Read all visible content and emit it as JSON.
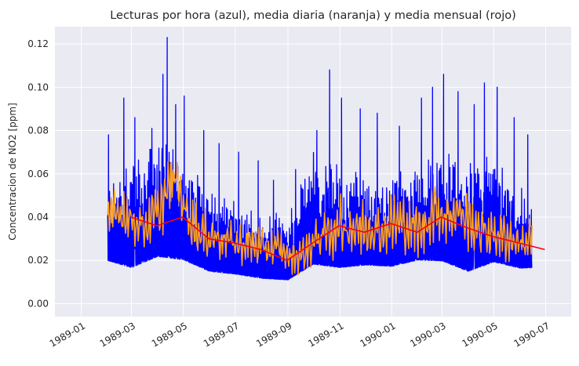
{
  "chart_data": {
    "type": "line",
    "title": "Lecturas por hora (azul), media diaria (naranja) y media mensual (rojo)",
    "xlabel": "",
    "ylabel": "Concentracion de NO2 [ppm]",
    "x_axis_type": "date",
    "xlim": [
      "1988-12-01",
      "1990-07-31"
    ],
    "ylim": [
      -0.006,
      0.128
    ],
    "x_ticks": [
      "1989-01",
      "1989-03",
      "1989-05",
      "1989-07",
      "1989-09",
      "1989-11",
      "1990-01",
      "1990-03",
      "1990-05",
      "1990-07"
    ],
    "y_ticks": [
      0.0,
      0.02,
      0.04,
      0.06,
      0.08,
      0.1,
      0.12
    ],
    "y_tick_labels": [
      "0.00",
      "0.02",
      "0.04",
      "0.06",
      "0.08",
      "0.10",
      "0.12"
    ],
    "grid": true,
    "colors": {
      "background": "#eaeaf2",
      "grid": "#ffffff",
      "hourly": "#0000ff",
      "daily": "#ff9f1c",
      "monthly": "#ff0000"
    },
    "series": [
      {
        "id": "hourly",
        "color": "#0000ff",
        "date_range": [
          "1989-02-01",
          "1990-06-15"
        ],
        "envelope": {
          "x": [
            "1989-02-01",
            "1989-03-01",
            "1989-04-01",
            "1989-05-01",
            "1989-06-01",
            "1989-07-01",
            "1989-08-01",
            "1989-09-01",
            "1989-10-01",
            "1989-11-01",
            "1989-12-01",
            "1990-01-01",
            "1990-02-01",
            "1990-03-01",
            "1990-04-01",
            "1990-05-01",
            "1990-06-01",
            "1990-06-15"
          ],
          "low": [
            0.012,
            0.006,
            0.008,
            0.01,
            0.006,
            0.006,
            0.005,
            0.004,
            0.006,
            0.006,
            0.008,
            0.008,
            0.01,
            0.008,
            0.004,
            0.008,
            0.008,
            0.01
          ],
          "high": [
            0.078,
            0.095,
            0.123,
            0.096,
            0.08,
            0.07,
            0.061,
            0.062,
            0.108,
            0.095,
            0.09,
            0.085,
            0.095,
            0.106,
            0.095,
            0.102,
            0.078,
            0.065
          ]
        },
        "peaks": [
          [
            "1989-02-02",
            0.078
          ],
          [
            "1989-02-20",
            0.095
          ],
          [
            "1989-03-05",
            0.086
          ],
          [
            "1989-03-25",
            0.081
          ],
          [
            "1989-04-07",
            0.106
          ],
          [
            "1989-04-12",
            0.123
          ],
          [
            "1989-04-22",
            0.092
          ],
          [
            "1989-05-02",
            0.096
          ],
          [
            "1989-05-25",
            0.08
          ],
          [
            "1989-06-12",
            0.074
          ],
          [
            "1989-07-05",
            0.07
          ],
          [
            "1989-07-28",
            0.066
          ],
          [
            "1989-08-15",
            0.057
          ],
          [
            "1989-09-10",
            0.062
          ],
          [
            "1989-10-05",
            0.08
          ],
          [
            "1989-10-20",
            0.108
          ],
          [
            "1989-11-03",
            0.095
          ],
          [
            "1989-11-25",
            0.09
          ],
          [
            "1989-12-15",
            0.088
          ],
          [
            "1990-01-10",
            0.082
          ],
          [
            "1990-02-05",
            0.095
          ],
          [
            "1990-02-18",
            0.1
          ],
          [
            "1990-03-03",
            0.106
          ],
          [
            "1990-03-20",
            0.098
          ],
          [
            "1990-04-08",
            0.092
          ],
          [
            "1990-04-20",
            0.102
          ],
          [
            "1990-05-05",
            0.1
          ],
          [
            "1990-05-25",
            0.086
          ],
          [
            "1990-06-10",
            0.078
          ]
        ]
      },
      {
        "id": "daily",
        "color": "#ff9f1c",
        "date_range": [
          "1989-02-01",
          "1990-06-15"
        ],
        "x": [
          "1989-02-05",
          "1989-02-20",
          "1989-03-05",
          "1989-03-20",
          "1989-04-05",
          "1989-04-20",
          "1989-05-05",
          "1989-05-20",
          "1989-06-05",
          "1989-06-20",
          "1989-07-05",
          "1989-07-20",
          "1989-08-05",
          "1989-08-20",
          "1989-09-05",
          "1989-09-20",
          "1989-10-05",
          "1989-10-20",
          "1989-11-05",
          "1989-11-20",
          "1989-12-05",
          "1989-12-20",
          "1990-01-05",
          "1990-01-20",
          "1990-02-05",
          "1990-02-20",
          "1990-03-05",
          "1990-03-20",
          "1990-04-05",
          "1990-04-20",
          "1990-05-05",
          "1990-05-20",
          "1990-06-05",
          "1990-06-15"
        ],
        "y": [
          0.04,
          0.042,
          0.038,
          0.036,
          0.045,
          0.06,
          0.042,
          0.032,
          0.031,
          0.03,
          0.027,
          0.028,
          0.025,
          0.026,
          0.021,
          0.023,
          0.03,
          0.033,
          0.036,
          0.034,
          0.036,
          0.033,
          0.038,
          0.036,
          0.033,
          0.044,
          0.04,
          0.043,
          0.036,
          0.033,
          0.032,
          0.03,
          0.028,
          0.03
        ],
        "spread": [
          0.01,
          0.012,
          0.011,
          0.011,
          0.014,
          0.01,
          0.011,
          0.011,
          0.01,
          0.009,
          0.009,
          0.009,
          0.008,
          0.008,
          0.007,
          0.008,
          0.01,
          0.012,
          0.013,
          0.012,
          0.013,
          0.012,
          0.013,
          0.012,
          0.012,
          0.014,
          0.013,
          0.013,
          0.012,
          0.011,
          0.011,
          0.01,
          0.01,
          0.009
        ]
      },
      {
        "id": "monthly",
        "color": "#ff0000",
        "x": [
          "1989-02-28",
          "1989-03-31",
          "1989-04-30",
          "1989-05-31",
          "1989-06-30",
          "1989-07-31",
          "1989-08-31",
          "1989-09-30",
          "1989-10-31",
          "1989-11-30",
          "1989-12-31",
          "1990-01-31",
          "1990-02-28",
          "1990-03-31",
          "1990-04-30",
          "1990-05-31",
          "1990-06-30"
        ],
        "y": [
          0.04,
          0.036,
          0.04,
          0.03,
          0.028,
          0.025,
          0.02,
          0.028,
          0.036,
          0.033,
          0.037,
          0.033,
          0.04,
          0.035,
          0.031,
          0.028,
          0.025
        ]
      }
    ]
  }
}
